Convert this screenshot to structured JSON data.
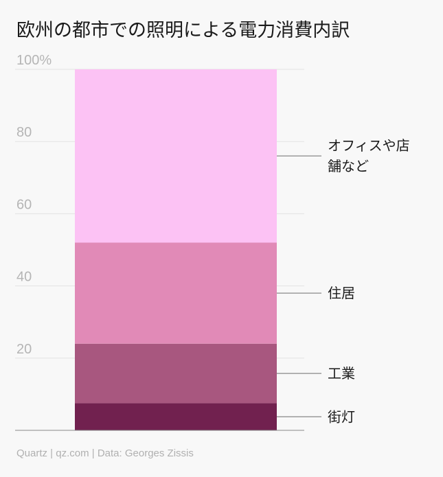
{
  "title": "欧州の都市での照明による電力消費内訳",
  "footer": "Quartz | qz.com | Data: Georges Zissis",
  "chart_data": {
    "type": "bar",
    "stacked": true,
    "ylim": [
      0,
      100
    ],
    "yticks": [
      {
        "value": 100,
        "label": "100%"
      },
      {
        "value": 80,
        "label": "80"
      },
      {
        "value": 60,
        "label": "60"
      },
      {
        "value": 40,
        "label": "40"
      },
      {
        "value": 20,
        "label": "20"
      }
    ],
    "grid": true,
    "series": [
      {
        "name": "街灯",
        "value": 7.5,
        "color": "#71214f",
        "label_lines": [
          "街灯"
        ]
      },
      {
        "name": "工業",
        "value": 16.5,
        "color": "#a8577f",
        "label_lines": [
          "工業"
        ]
      },
      {
        "name": "住居",
        "value": 28,
        "color": "#e18ab7",
        "label_lines": [
          "住居"
        ]
      },
      {
        "name": "オフィスや店舗など",
        "value": 48,
        "color": "#fcc2f4",
        "label_lines": [
          "オフィスや店",
          "舗など"
        ]
      }
    ]
  }
}
